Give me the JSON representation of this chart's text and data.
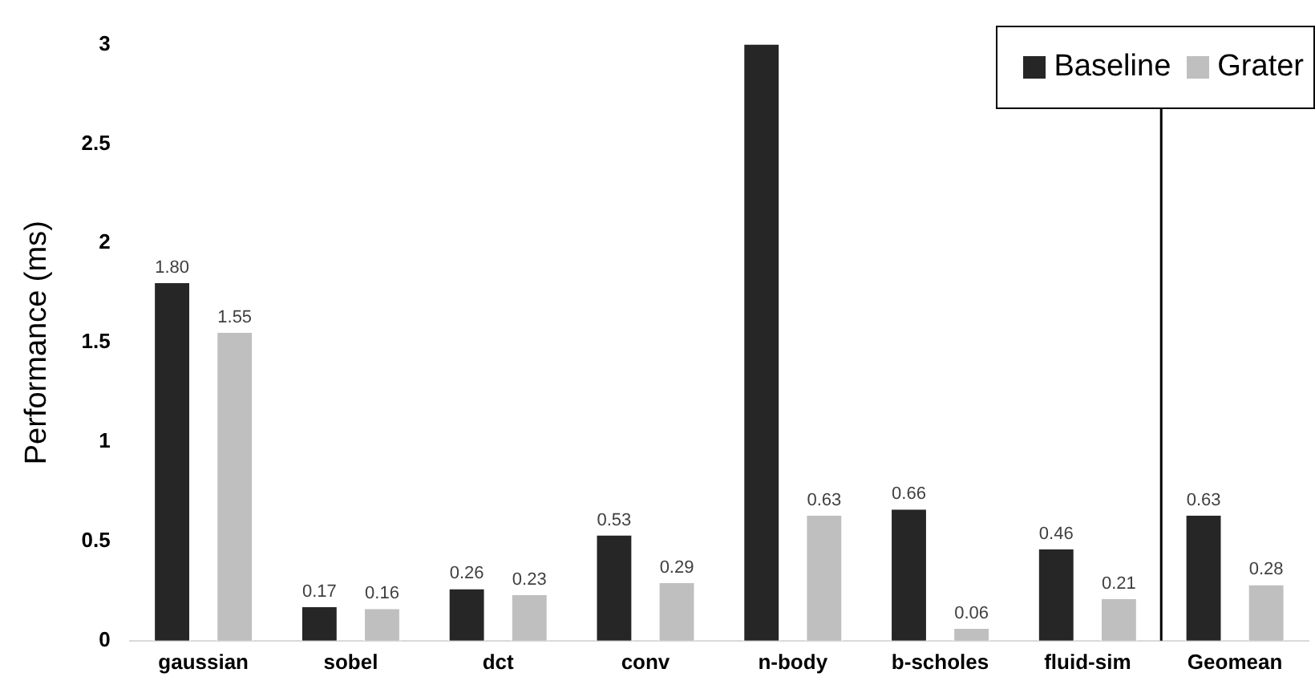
{
  "chart_data": {
    "type": "bar",
    "ylabel": "Performance (ms)",
    "categories": [
      "gaussian",
      "sobel",
      "dct",
      "conv",
      "n-body",
      "b-scholes",
      "fluid-sim",
      "Geomean"
    ],
    "series": [
      {
        "name": "Baseline",
        "color": "#262626",
        "values": [
          1.8,
          0.17,
          0.26,
          0.53,
          3,
          0.66,
          0.46,
          0.63
        ],
        "value_labels": [
          "1.80",
          "0.17",
          "0.26",
          "0.53",
          null,
          "0.66",
          "0.46",
          "0.63"
        ]
      },
      {
        "name": "Grater",
        "color": "#bfbfbf",
        "values": [
          1.55,
          0.16,
          0.23,
          0.29,
          0.63,
          0.06,
          0.21,
          0.28
        ],
        "value_labels": [
          "1.55",
          "0.16",
          "0.23",
          "0.29",
          "0.63",
          "0.06",
          "0.21",
          "0.28"
        ]
      }
    ],
    "ylim": [
      0,
      3
    ],
    "yticks": [
      0,
      0.5,
      1,
      1.5,
      2,
      2.5,
      3
    ],
    "grid": false,
    "legend": "top right"
  }
}
